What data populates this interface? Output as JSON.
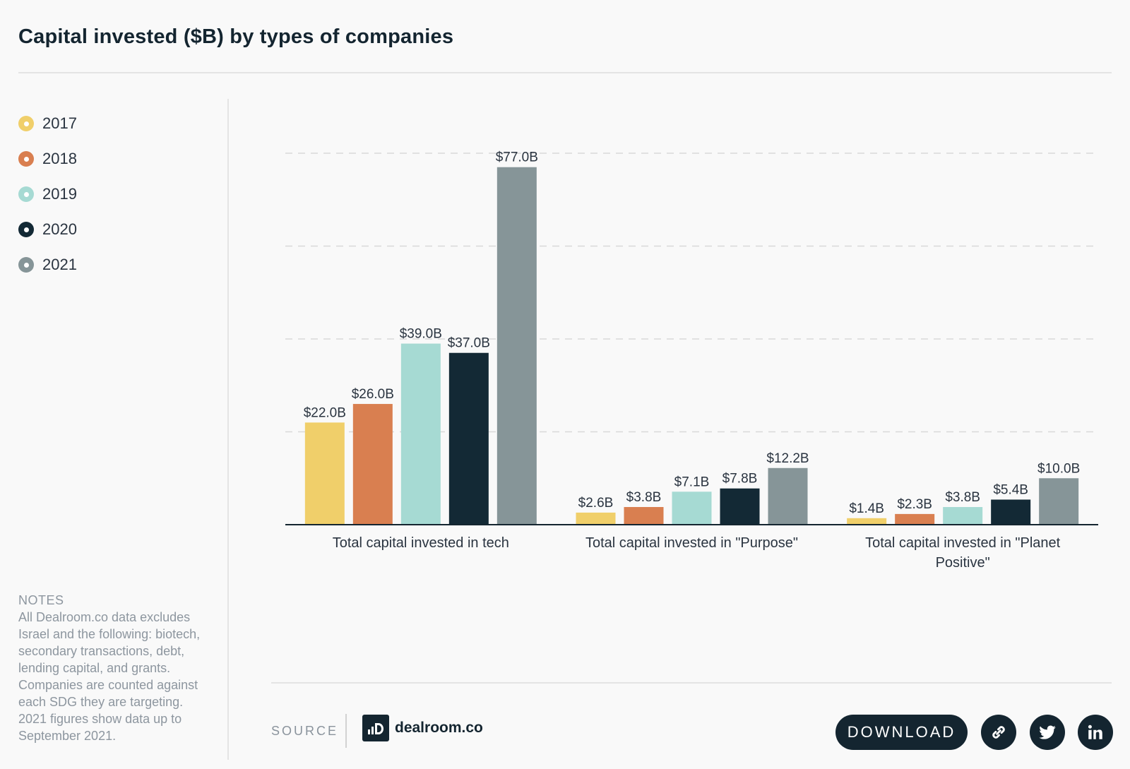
{
  "title": "Capital invested ($B) by types of companies",
  "legend": [
    {
      "label": "2017",
      "color": "#f0cf6a"
    },
    {
      "label": "2018",
      "color": "#d97f50"
    },
    {
      "label": "2019",
      "color": "#a6dad3"
    },
    {
      "label": "2020",
      "color": "#132935"
    },
    {
      "label": "2021",
      "color": "#869598"
    }
  ],
  "notes": {
    "label": "NOTES",
    "text": "All Dealroom.co data excludes Israel and the following: biotech, secondary transactions, debt, lending capital, and grants. Companies are counted against each SDG they are targeting. 2021 figures show data up to September 2021."
  },
  "footer": {
    "source_label": "SOURCE",
    "logo_text": "dealroom.co",
    "download_label": "DOWNLOAD",
    "share_icons": [
      "link-icon",
      "twitter-icon",
      "linkedin-icon"
    ]
  },
  "chart_data": {
    "type": "bar",
    "title": "Capital invested ($B) by types of companies",
    "xlabel": "",
    "ylabel": "",
    "ylim": [
      0,
      80
    ],
    "grid": true,
    "legend_position": "left",
    "categories": [
      [
        "Total capital invested in tech"
      ],
      [
        "Total capital invested in \"Purpose\""
      ],
      [
        "Total capital invested in \"Planet",
        "Positive\""
      ]
    ],
    "series": [
      {
        "name": "2017",
        "color": "#f0cf6a",
        "values": [
          22.0,
          2.6,
          1.4
        ],
        "labels": [
          "$22.0B",
          "$2.6B",
          "$1.4B"
        ]
      },
      {
        "name": "2018",
        "color": "#d97f50",
        "values": [
          26.0,
          3.8,
          2.3
        ],
        "labels": [
          "$26.0B",
          "$3.8B",
          "$2.3B"
        ]
      },
      {
        "name": "2019",
        "color": "#a6dad3",
        "values": [
          39.0,
          7.1,
          3.8
        ],
        "labels": [
          "$39.0B",
          "$7.1B",
          "$3.8B"
        ]
      },
      {
        "name": "2020",
        "color": "#132935",
        "values": [
          37.0,
          7.8,
          5.4
        ],
        "labels": [
          "$37.0B",
          "$7.8B",
          "$5.4B"
        ]
      },
      {
        "name": "2021",
        "color": "#869598",
        "values": [
          77.0,
          12.2,
          10.0
        ],
        "labels": [
          "$77.0B",
          "$12.2B",
          "$10.0B"
        ]
      }
    ]
  }
}
